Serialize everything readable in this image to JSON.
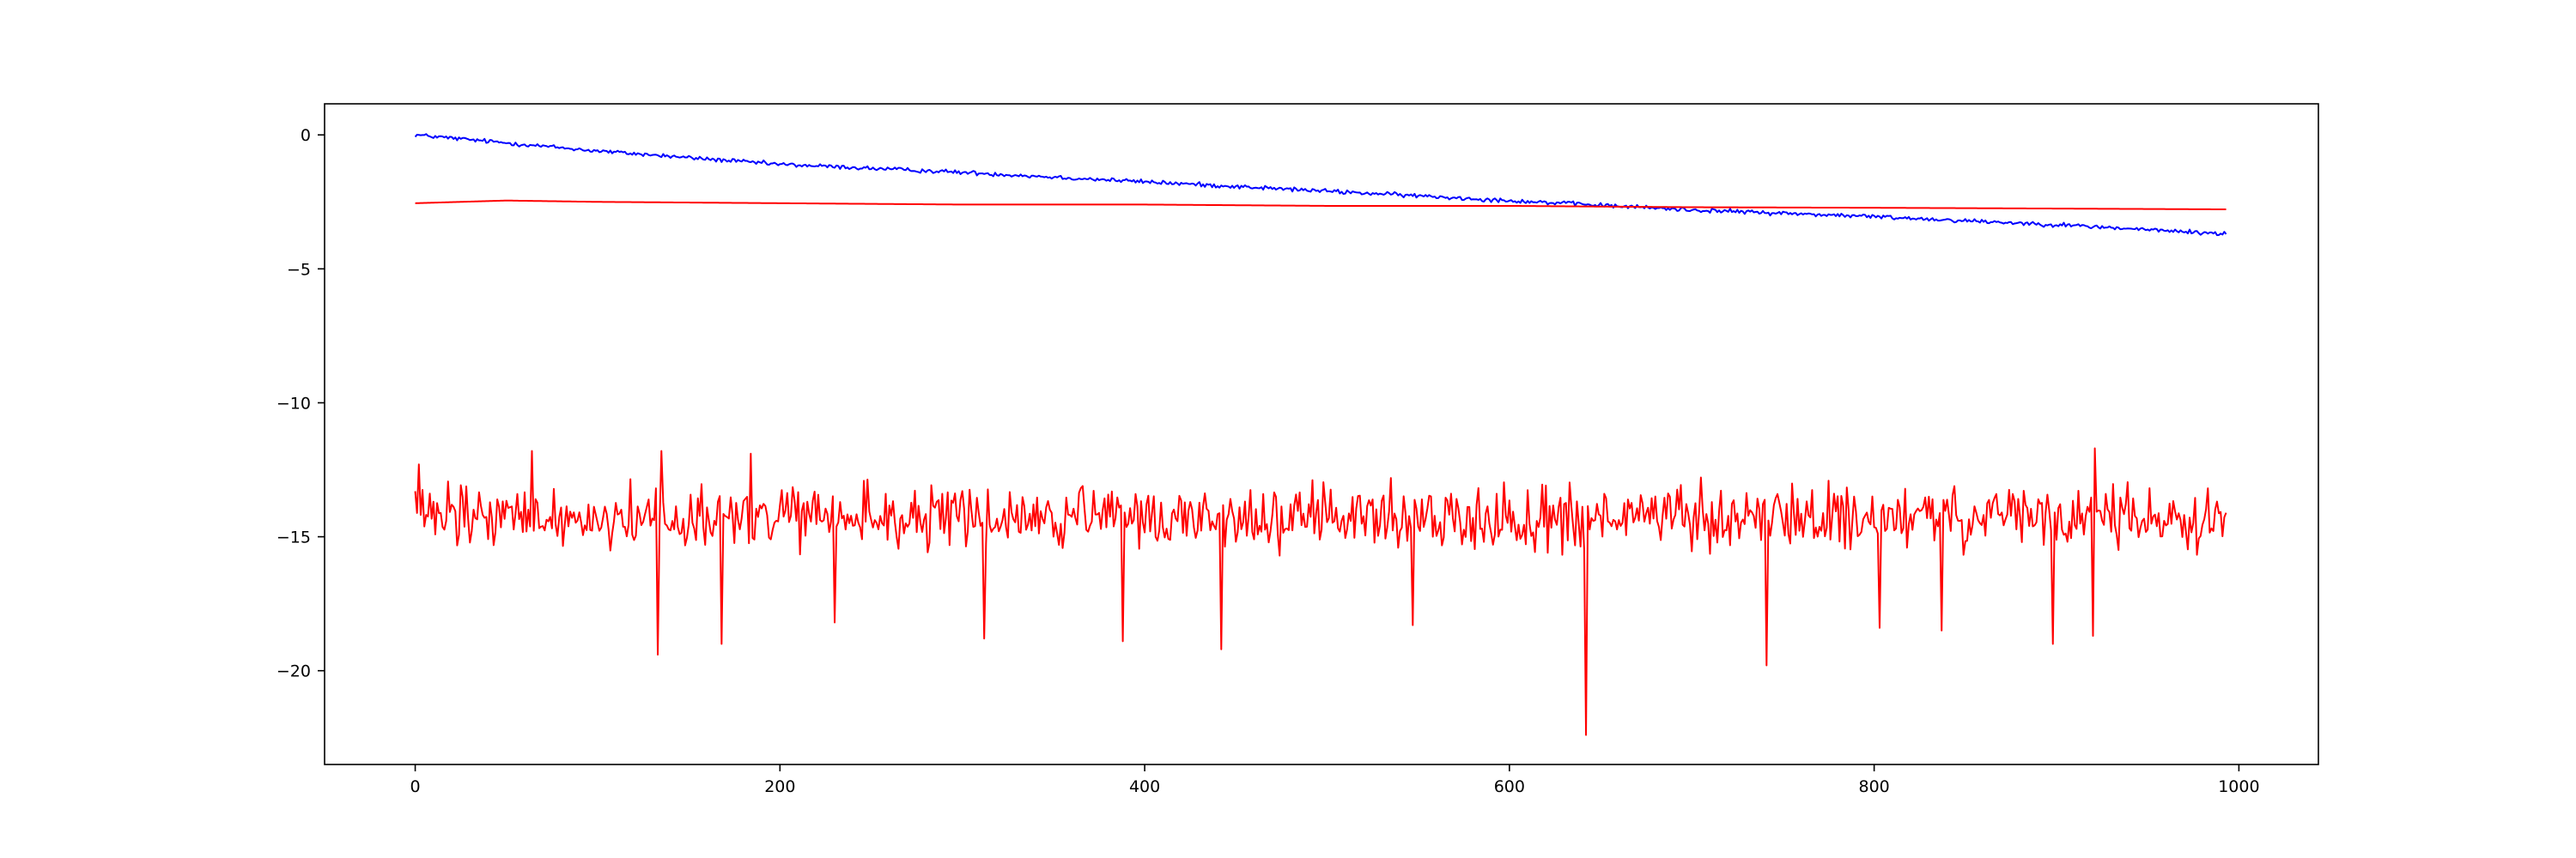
{
  "chart_data": {
    "type": "line",
    "title": "",
    "xlabel": "",
    "ylabel": "",
    "xlim": [
      -49.7,
      1043.6
    ],
    "ylim": [
      -23.5,
      1.16
    ],
    "x_ticks": [
      0,
      200,
      400,
      600,
      800,
      1000
    ],
    "y_ticks": [
      0,
      -5,
      -10,
      -15,
      -20
    ],
    "grid": false,
    "legend": "none",
    "n_points": 994,
    "series": [
      {
        "color": "#0000ff",
        "trend": [
          [
            0,
            0.0
          ],
          [
            100,
            -0.6
          ],
          [
            200,
            -1.1
          ],
          [
            300,
            -1.4
          ],
          [
            400,
            -1.75
          ],
          [
            500,
            -2.1
          ],
          [
            600,
            -2.45
          ],
          [
            700,
            -2.8
          ],
          [
            800,
            -3.05
          ],
          [
            900,
            -3.35
          ],
          [
            993,
            -3.7
          ]
        ],
        "noise_amplitude": 0.12,
        "spikes": []
      },
      {
        "color": "#ff0000",
        "trend": [
          [
            0,
            -2.55
          ],
          [
            50,
            -2.45
          ],
          [
            100,
            -2.5
          ],
          [
            200,
            -2.55
          ],
          [
            300,
            -2.6
          ],
          [
            400,
            -2.6
          ],
          [
            500,
            -2.65
          ],
          [
            600,
            -2.65
          ],
          [
            700,
            -2.7
          ],
          [
            800,
            -2.72
          ],
          [
            900,
            -2.75
          ],
          [
            993,
            -2.78
          ]
        ],
        "noise_amplitude": 0.0,
        "spikes": []
      },
      {
        "color": "#ff0000",
        "trend": [
          [
            0,
            -14.3
          ],
          [
            993,
            -14.3
          ]
        ],
        "noise_amplitude": 1.1,
        "spikes": [
          [
            133,
            -19.4
          ],
          [
            168,
            -19.0
          ],
          [
            230,
            -18.2
          ],
          [
            312,
            -18.8
          ],
          [
            388,
            -18.9
          ],
          [
            442,
            -19.2
          ],
          [
            547,
            -18.3
          ],
          [
            642,
            -22.4
          ],
          [
            741,
            -19.8
          ],
          [
            803,
            -18.4
          ],
          [
            837,
            -18.5
          ],
          [
            898,
            -19.0
          ],
          [
            920,
            -18.7
          ],
          [
            920.5,
            -11.7
          ],
          [
            135,
            -11.8
          ],
          [
            64,
            -11.8
          ],
          [
            184,
            -11.9
          ],
          [
            0,
            -13.3
          ],
          [
            2,
            -12.3
          ]
        ]
      }
    ]
  }
}
